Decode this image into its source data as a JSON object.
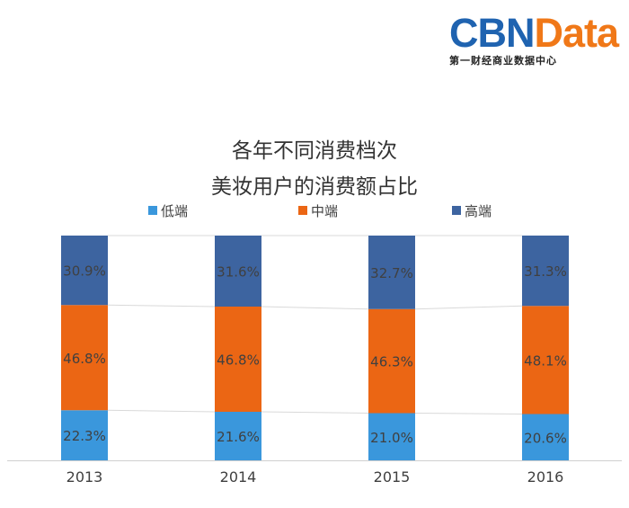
{
  "logo": {
    "brand_main": "CBN",
    "brand_accent": "Data",
    "subtitle": "第一财经商业数据中心",
    "colors": {
      "main": "#1f63b0",
      "accent": "#f07818"
    }
  },
  "chart_data": {
    "type": "bar",
    "stacked": true,
    "title_line1": "各年不同消费档次",
    "title_line2": "美妆用户的消费额占比",
    "categories": [
      "2013",
      "2014",
      "2015",
      "2016"
    ],
    "series": [
      {
        "name": "低端",
        "color": "#3a97dc",
        "values": [
          22.3,
          21.6,
          21.0,
          20.6
        ]
      },
      {
        "name": "中端",
        "color": "#eb6614",
        "values": [
          46.8,
          46.8,
          46.3,
          48.1
        ]
      },
      {
        "name": "高端",
        "color": "#3d64a0",
        "values": [
          30.9,
          31.6,
          32.7,
          31.3
        ]
      }
    ],
    "data_labels": [
      [
        "22.3%",
        "21.6%",
        "21.0%",
        "20.6%"
      ],
      [
        "46.8%",
        "46.8%",
        "46.3%",
        "48.1%"
      ],
      [
        "30.9%",
        "31.6%",
        "32.7%",
        "31.3%"
      ]
    ],
    "ylim": [
      0,
      100
    ],
    "series_lines": true,
    "legend_position": "top",
    "grid": false
  }
}
